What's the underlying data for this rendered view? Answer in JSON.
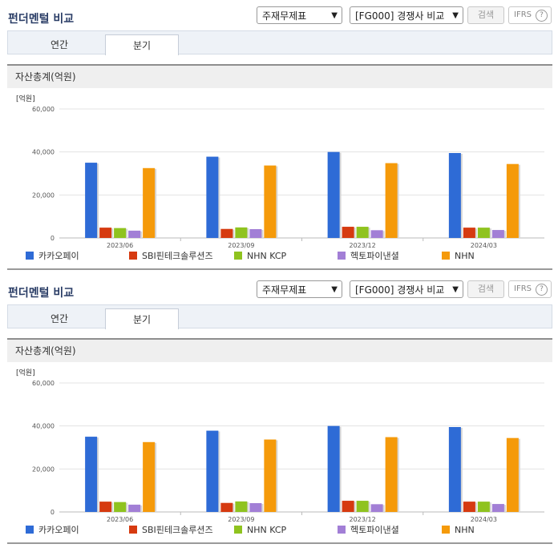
{
  "panels": [
    {
      "title": "펀더멘털 비교",
      "select_category": "주재무제표",
      "select_compare": "[FG000] 경쟁사 비교",
      "search_label": "검색",
      "ifrs_label": "IFRS",
      "help_glyph": "?",
      "tabs": [
        {
          "label": "연간",
          "active": false
        },
        {
          "label": "분기",
          "active": true
        }
      ],
      "subheading": "자산총계(억원)"
    },
    {
      "title": "펀더멘털 비교",
      "select_category": "주재무제표",
      "select_compare": "[FG000] 경쟁사 비교",
      "search_label": "검색",
      "ifrs_label": "IFRS",
      "help_glyph": "?",
      "tabs": [
        {
          "label": "연간",
          "active": false
        },
        {
          "label": "분기",
          "active": true
        }
      ],
      "subheading": "자산총계(억원)"
    }
  ],
  "chart_data": [
    {
      "type": "bar",
      "unit_label": "[억원]",
      "categories": [
        "2023/06",
        "2023/09",
        "2023/12",
        "2024/03"
      ],
      "ylim": [
        0,
        60000
      ],
      "yticks": [
        "0",
        "20,000",
        "40,000",
        "60,000"
      ],
      "grid": true,
      "legend_position": "bottom",
      "series": [
        {
          "name": "카카오페이",
          "color": "#2e6bd6",
          "values": [
            35000,
            37800,
            40000,
            39500
          ]
        },
        {
          "name": "SBI핀테크솔루션즈",
          "color": "#d63a10",
          "values": [
            4800,
            4200,
            5200,
            4800
          ]
        },
        {
          "name": "NHN KCP",
          "color": "#8fc31f",
          "values": [
            4600,
            4900,
            5200,
            4800
          ]
        },
        {
          "name": "헥토파이낸셜",
          "color": "#a27fd6",
          "values": [
            3400,
            4100,
            3600,
            3700
          ]
        },
        {
          "name": "NHN",
          "color": "#f59a0a",
          "values": [
            32500,
            33700,
            34800,
            34400
          ]
        }
      ]
    },
    {
      "type": "bar",
      "unit_label": "[억원]",
      "categories": [
        "2023/06",
        "2023/09",
        "2023/12",
        "2024/03"
      ],
      "ylim": [
        0,
        60000
      ],
      "yticks": [
        "0",
        "20,000",
        "40,000",
        "60,000"
      ],
      "grid": true,
      "legend_position": "bottom",
      "series": [
        {
          "name": "카카오페이",
          "color": "#2e6bd6",
          "values": [
            35000,
            37800,
            40000,
            39500
          ]
        },
        {
          "name": "SBI핀테크솔루션즈",
          "color": "#d63a10",
          "values": [
            4800,
            4200,
            5200,
            4800
          ]
        },
        {
          "name": "NHN KCP",
          "color": "#8fc31f",
          "values": [
            4600,
            4900,
            5200,
            4800
          ]
        },
        {
          "name": "헥토파이낸셜",
          "color": "#a27fd6",
          "values": [
            3400,
            4100,
            3600,
            3700
          ]
        },
        {
          "name": "NHN",
          "color": "#f59a0a",
          "values": [
            32500,
            33700,
            34800,
            34400
          ]
        }
      ]
    }
  ]
}
